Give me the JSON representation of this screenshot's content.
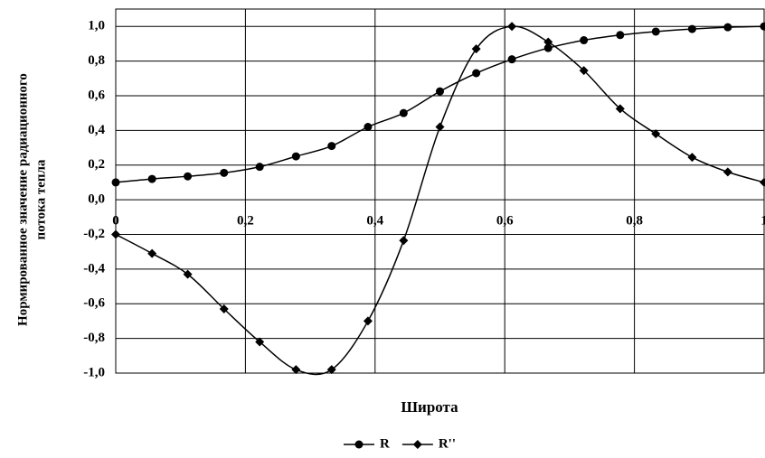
{
  "chart_data": {
    "type": "line",
    "x_label": "Широта",
    "y_label": [
      "Нормированное значение радиационного",
      "потока тепла"
    ],
    "x": [
      0,
      0.056,
      0.111,
      0.167,
      0.222,
      0.278,
      0.333,
      0.389,
      0.444,
      0.5,
      0.556,
      0.611,
      0.667,
      0.722,
      0.778,
      0.833,
      0.889,
      0.944,
      1.0
    ],
    "series": [
      {
        "name": "R",
        "color": "#000000",
        "marker": "circle",
        "values": [
          0.1,
          0.12,
          0.135,
          0.155,
          0.19,
          0.25,
          0.31,
          0.42,
          0.5,
          0.625,
          0.73,
          0.81,
          0.875,
          0.92,
          0.95,
          0.97,
          0.985,
          0.995,
          1.0
        ]
      },
      {
        "name": "R''",
        "color": "#000000",
        "marker": "diamond",
        "values": [
          -0.2,
          -0.31,
          -0.43,
          -0.63,
          -0.82,
          -0.98,
          -0.98,
          -0.7,
          -0.235,
          0.42,
          0.87,
          1.0,
          0.91,
          0.745,
          0.525,
          0.38,
          0.245,
          0.16,
          0.1
        ]
      }
    ],
    "xlim": [
      0,
      1
    ],
    "ylim": [
      -1.0,
      1.1
    ],
    "xticks": [
      0,
      {
        "value": 0.2,
        "label": "0,2"
      },
      {
        "value": 0.4,
        "label": "0,4"
      },
      {
        "value": 0.6,
        "label": "0,6"
      },
      {
        "value": 0.8,
        "label": "0,8"
      },
      1
    ],
    "yticks": [
      {
        "value": -1.0,
        "label": "-1,0"
      },
      {
        "value": -0.8,
        "label": "-0,8"
      },
      {
        "value": -0.6,
        "label": "-0,6"
      },
      {
        "value": -0.4,
        "label": "-0,4"
      },
      {
        "value": -0.2,
        "label": "-0,2"
      },
      {
        "value": 0.0,
        "label": "0,0"
      },
      {
        "value": 0.2,
        "label": "0,2"
      },
      {
        "value": 0.4,
        "label": "0,4"
      },
      {
        "value": 0.6,
        "label": "0,6"
      },
      {
        "value": 0.8,
        "label": "0,8"
      },
      {
        "value": 1.0,
        "label": "1,0"
      }
    ],
    "grid": true,
    "legend": "bottom"
  }
}
